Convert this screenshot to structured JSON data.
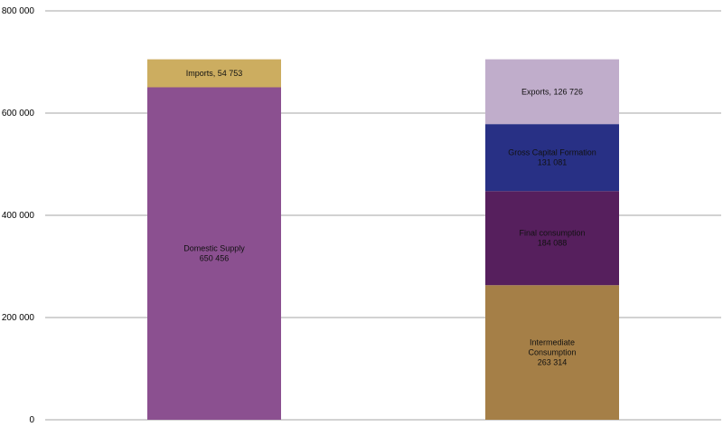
{
  "chart_data": {
    "type": "bar",
    "stacked": true,
    "ylim": [
      0,
      800000
    ],
    "yticks": [
      0,
      200000,
      400000,
      600000,
      800000
    ],
    "ytick_labels": [
      "0",
      "200 000",
      "400 000",
      "600 000",
      "800 000"
    ],
    "grid": true,
    "legend": "none",
    "bars": [
      {
        "segments": [
          {
            "name": "Domestic Supply",
            "value": 650456,
            "label_lines": [
              "Domestic Supply",
              "650 456"
            ],
            "color": "#8B5090"
          },
          {
            "name": "Imports",
            "value": 54753,
            "label_lines": [
              "Imports, 54 753"
            ],
            "color": "#CCAD60"
          }
        ]
      },
      {
        "segments": [
          {
            "name": "Intermediate Consumption",
            "value": 263314,
            "label_lines": [
              "Intermediate",
              "Consumption",
              "263 314"
            ],
            "color": "#A57F47"
          },
          {
            "name": "Final consumption",
            "value": 184088,
            "label_lines": [
              "Final consumption",
              "184 088"
            ],
            "color": "#561F5D"
          },
          {
            "name": "Gross Capital Formation",
            "value": 131081,
            "label_lines": [
              "Gross Capital Formation",
              "131 081"
            ],
            "color": "#283085"
          },
          {
            "name": "Exports",
            "value": 126726,
            "label_lines": [
              "Exports, 126 726"
            ],
            "color": "#C0ADCB"
          }
        ]
      }
    ]
  }
}
